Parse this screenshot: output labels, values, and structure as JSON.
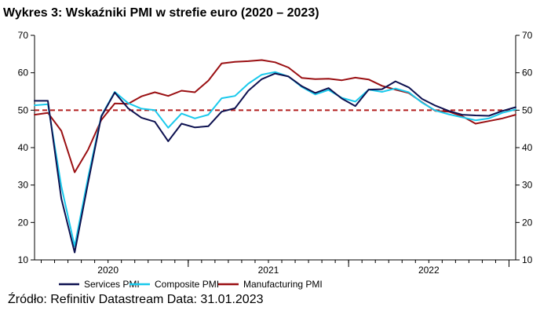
{
  "title": "Wykres 3: Wskaźniki PMI w strefie euro (2020 – 2023)",
  "source": "Źródło: Refinitiv Datastream Data: 31.01.2023",
  "colors": {
    "services": "#0d1150",
    "composite": "#19c9ec",
    "manufacturing": "#9a0f12",
    "reference": "#b21e1e"
  },
  "chart_data": {
    "type": "line",
    "title": "Wykres 3: Wskaźniki PMI w strefie euro (2020 – 2023)",
    "xlabel": "",
    "ylabel": "",
    "x_tick_labels": [
      "2020",
      "2021",
      "2022"
    ],
    "ylim": [
      10,
      70
    ],
    "y_ticks": [
      10,
      20,
      30,
      40,
      50,
      60,
      70
    ],
    "y_axis_both_sides": true,
    "reference_line": {
      "value": 50,
      "style": "dashed"
    },
    "x_range": [
      0,
      36
    ],
    "x": [
      0,
      1,
      2,
      3,
      4,
      5,
      6,
      7,
      8,
      9,
      10,
      11,
      12,
      13,
      14,
      15,
      16,
      17,
      18,
      19,
      20,
      21,
      22,
      23,
      24,
      25,
      26,
      27,
      28,
      29,
      30,
      31,
      32,
      33,
      34,
      35,
      36
    ],
    "legend_position": "bottom",
    "series": [
      {
        "name": "Services PMI",
        "color": "#0d1150",
        "values": [
          52.5,
          52.5,
          26.4,
          12.0,
          30.5,
          48.3,
          54.7,
          50.5,
          48.0,
          46.9,
          41.7,
          46.4,
          45.4,
          45.7,
          49.6,
          50.5,
          55.2,
          58.3,
          59.8,
          59.0,
          56.4,
          54.6,
          55.9,
          53.1,
          51.1,
          55.5,
          55.6,
          57.7,
          56.1,
          53.0,
          51.2,
          49.8,
          48.8,
          48.6,
          48.5,
          49.8,
          50.8
        ]
      },
      {
        "name": "Composite PMI",
        "color": "#19c9ec",
        "values": [
          51.3,
          51.6,
          29.7,
          13.6,
          31.9,
          48.5,
          54.9,
          51.9,
          50.4,
          50.0,
          45.3,
          49.1,
          47.8,
          48.8,
          53.2,
          53.8,
          57.1,
          59.5,
          60.2,
          59.0,
          56.2,
          54.2,
          55.4,
          53.3,
          52.3,
          55.5,
          54.9,
          55.8,
          54.8,
          52.0,
          49.9,
          48.9,
          48.1,
          47.3,
          47.8,
          49.3,
          50.2
        ]
      },
      {
        "name": "Manufacturing PMI",
        "color": "#9a0f12",
        "values": [
          48.8,
          49.3,
          44.5,
          33.4,
          39.4,
          47.4,
          51.8,
          51.7,
          53.7,
          54.8,
          53.8,
          55.2,
          54.8,
          57.9,
          62.5,
          62.9,
          63.1,
          63.4,
          62.8,
          61.4,
          58.6,
          58.3,
          58.4,
          58.0,
          58.7,
          58.2,
          56.5,
          55.5,
          54.6,
          52.1,
          49.8,
          49.6,
          48.4,
          46.4,
          47.1,
          47.8,
          48.8
        ]
      }
    ]
  }
}
